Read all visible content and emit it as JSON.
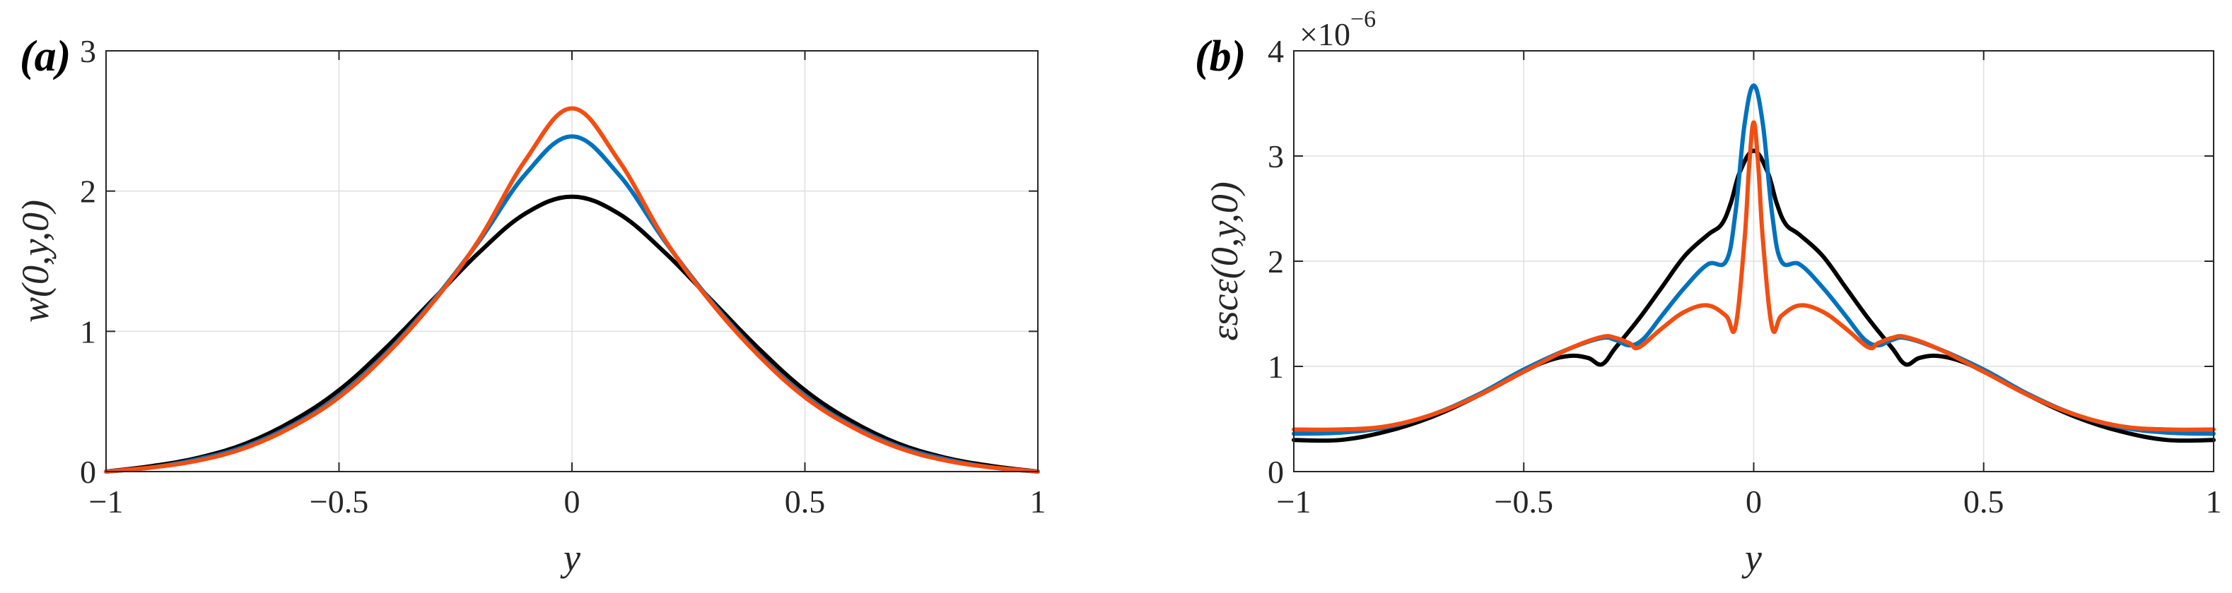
{
  "chart_data": [
    {
      "type": "line",
      "panel_label": "(a)",
      "xlabel": "y",
      "ylabel": "w(0,y,0)",
      "xlim": [
        -1,
        1
      ],
      "ylim": [
        0,
        3
      ],
      "xticks": [
        -1,
        -0.5,
        0,
        0.5,
        1
      ],
      "xtick_labels": [
        "−1",
        "−0.5",
        "0",
        "0.5",
        "1"
      ],
      "yticks": [
        0,
        1,
        2,
        3
      ],
      "ytick_labels": [
        "0",
        "1",
        "2",
        "3"
      ],
      "grid": true,
      "x": [
        -1.0,
        -0.9,
        -0.8,
        -0.7,
        -0.6,
        -0.5,
        -0.4,
        -0.3,
        -0.2,
        -0.1,
        0.0,
        0.1,
        0.2,
        0.3,
        0.4,
        0.5,
        0.6,
        0.7,
        0.8,
        0.9,
        1.0
      ],
      "series": [
        {
          "color": "#000000",
          "values": [
            0.0,
            0.04,
            0.1,
            0.2,
            0.36,
            0.58,
            0.88,
            1.22,
            1.56,
            1.84,
            1.96,
            1.84,
            1.56,
            1.22,
            0.88,
            0.58,
            0.36,
            0.2,
            0.1,
            0.04,
            0.0
          ]
        },
        {
          "color": "#0072BD",
          "values": [
            0.0,
            0.03,
            0.09,
            0.18,
            0.33,
            0.54,
            0.84,
            1.21,
            1.64,
            2.12,
            2.39,
            2.12,
            1.64,
            1.21,
            0.84,
            0.54,
            0.33,
            0.18,
            0.09,
            0.03,
            0.0
          ]
        },
        {
          "color": "#F24E12",
          "values": [
            0.0,
            0.03,
            0.08,
            0.17,
            0.32,
            0.53,
            0.83,
            1.2,
            1.65,
            2.22,
            2.59,
            2.22,
            1.65,
            1.2,
            0.83,
            0.53,
            0.32,
            0.17,
            0.08,
            0.03,
            0.0
          ]
        }
      ]
    },
    {
      "type": "line",
      "panel_label": "(b)",
      "xlabel": "y",
      "ylabel": "εscε(0,y,0)",
      "y_multiplier": "×10",
      "y_multiplier_exp": "−6",
      "xlim": [
        -1,
        1
      ],
      "ylim": [
        0,
        4
      ],
      "xticks": [
        -1,
        -0.5,
        0,
        0.5,
        1
      ],
      "xtick_labels": [
        "−1",
        "−0.5",
        "0",
        "0.5",
        "1"
      ],
      "yticks": [
        0,
        1,
        2,
        3,
        4
      ],
      "ytick_labels": [
        "0",
        "1",
        "2",
        "3",
        "4"
      ],
      "grid": true,
      "series": [
        {
          "color": "#000000",
          "x": [
            -1.0,
            -0.9,
            -0.8,
            -0.7,
            -0.6,
            -0.5,
            -0.45,
            -0.4,
            -0.36,
            -0.33,
            -0.3,
            -0.25,
            -0.2,
            -0.15,
            -0.1,
            -0.07,
            -0.05,
            -0.03,
            0.0,
            0.03,
            0.05,
            0.07,
            0.1,
            0.15,
            0.2,
            0.25,
            0.3,
            0.33,
            0.36,
            0.4,
            0.45,
            0.5,
            0.6,
            0.7,
            0.8,
            0.9,
            1.0
          ],
          "values": [
            0.3,
            0.3,
            0.38,
            0.52,
            0.72,
            0.95,
            1.05,
            1.1,
            1.08,
            1.02,
            1.18,
            1.45,
            1.75,
            2.05,
            2.25,
            2.35,
            2.55,
            2.85,
            3.05,
            2.85,
            2.55,
            2.35,
            2.25,
            2.05,
            1.75,
            1.45,
            1.18,
            1.02,
            1.08,
            1.1,
            1.05,
            0.95,
            0.72,
            0.52,
            0.38,
            0.3,
            0.3
          ]
        },
        {
          "color": "#0072BD",
          "x": [
            -1.0,
            -0.9,
            -0.8,
            -0.7,
            -0.6,
            -0.5,
            -0.4,
            -0.33,
            -0.3,
            -0.27,
            -0.24,
            -0.2,
            -0.15,
            -0.1,
            -0.06,
            -0.04,
            -0.02,
            0.0,
            0.02,
            0.04,
            0.06,
            0.1,
            0.15,
            0.2,
            0.24,
            0.27,
            0.3,
            0.33,
            0.4,
            0.5,
            0.6,
            0.7,
            0.8,
            0.9,
            1.0
          ],
          "values": [
            0.36,
            0.37,
            0.42,
            0.54,
            0.73,
            0.97,
            1.17,
            1.27,
            1.25,
            1.2,
            1.26,
            1.48,
            1.75,
            1.97,
            2.0,
            2.45,
            3.3,
            3.67,
            3.3,
            2.45,
            2.0,
            1.97,
            1.75,
            1.48,
            1.26,
            1.2,
            1.25,
            1.27,
            1.17,
            0.97,
            0.73,
            0.54,
            0.42,
            0.37,
            0.36
          ]
        },
        {
          "color": "#F24E12",
          "x": [
            -1.0,
            -0.9,
            -0.8,
            -0.7,
            -0.6,
            -0.5,
            -0.4,
            -0.33,
            -0.3,
            -0.27,
            -0.25,
            -0.2,
            -0.15,
            -0.1,
            -0.06,
            -0.04,
            -0.02,
            -0.01,
            0.0,
            0.01,
            0.02,
            0.04,
            0.06,
            0.1,
            0.15,
            0.2,
            0.25,
            0.27,
            0.3,
            0.33,
            0.4,
            0.5,
            0.6,
            0.7,
            0.8,
            0.9,
            1.0
          ],
          "values": [
            0.4,
            0.4,
            0.43,
            0.54,
            0.72,
            0.95,
            1.17,
            1.28,
            1.27,
            1.22,
            1.18,
            1.36,
            1.52,
            1.58,
            1.48,
            1.37,
            2.2,
            2.9,
            3.32,
            2.9,
            2.2,
            1.37,
            1.48,
            1.58,
            1.52,
            1.36,
            1.18,
            1.22,
            1.27,
            1.28,
            1.17,
            0.95,
            0.72,
            0.54,
            0.43,
            0.4,
            0.4
          ]
        }
      ]
    }
  ]
}
